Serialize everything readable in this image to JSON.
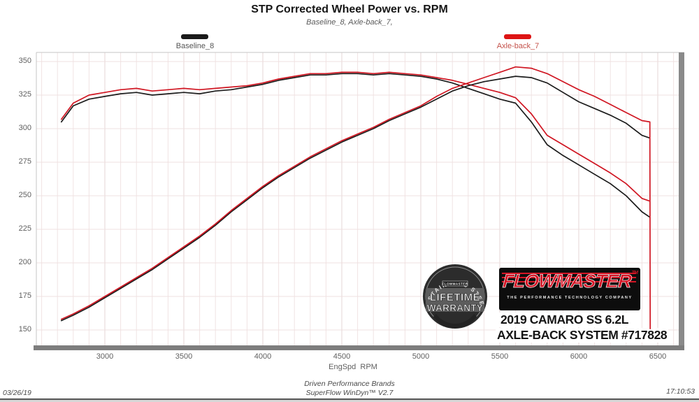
{
  "header": {
    "title": "STP Corrected Wheel Power vs. RPM",
    "subtitle": "Baseline_8, Axle-back_7,"
  },
  "legend": {
    "baseline": {
      "label": "Baseline_8",
      "color": "#1a1a1a"
    },
    "axleback": {
      "label": "Axle-back_7",
      "color": "#dd1414"
    }
  },
  "branding": {
    "badge": {
      "arc_text": "STAINLESS STEEL",
      "brand": "FLOWMASTER",
      "line1": "LIFETIME",
      "line2": "WARRANTY"
    },
    "logo": {
      "word": "FLOWMASTER",
      "tm": "TM",
      "tagline": "THE PERFORMANCE TECHNOLOGY COMPANY"
    },
    "vehicle_line1": "2019 CAMARO SS 6.2L",
    "vehicle_line2": "AXLE-BACK SYSTEM #717828"
  },
  "footer": {
    "date": "03/26/19",
    "center_line1": "Driven Performance Brands",
    "center_line2": "SuperFlow WinDyn™ V2.7",
    "time": "17:10:53"
  },
  "chart_data": {
    "type": "line",
    "title": "STP Corrected Wheel Power vs. RPM",
    "subtitle": "Baseline_8, Axle-back_7,",
    "xlabel": "EngSpd  RPM",
    "ylabel": "",
    "x_ticks": [
      3000,
      3500,
      4000,
      4500,
      5000,
      5500,
      6000,
      6500
    ],
    "y_ticks": [
      150,
      175,
      200,
      225,
      250,
      275,
      300,
      325,
      350
    ],
    "xlim": [
      2566,
      6660
    ],
    "ylim": [
      138,
      357
    ],
    "minor_x_step": 100,
    "grid": true,
    "legend_position": "top",
    "x": [
      2725,
      2800,
      2900,
      3000,
      3100,
      3200,
      3300,
      3400,
      3500,
      3600,
      3700,
      3800,
      3900,
      4000,
      4100,
      4200,
      4300,
      4400,
      4500,
      4600,
      4700,
      4800,
      4900,
      5000,
      5100,
      5200,
      5300,
      5400,
      5500,
      5600,
      5700,
      5800,
      5900,
      6000,
      6100,
      6200,
      6300,
      6400,
      6450
    ],
    "series": [
      {
        "name": "baseline-8-torque",
        "legend": "Baseline_8",
        "color": "#1c1c1c",
        "y": [
          305,
          317,
          322,
          324,
          326,
          327,
          325,
          326,
          327,
          326,
          328,
          329,
          331,
          333,
          336,
          338,
          340,
          340,
          341,
          341,
          340,
          341,
          340,
          339,
          337,
          334,
          330,
          326,
          322,
          319,
          305,
          288,
          280,
          273,
          266,
          259,
          250,
          238,
          234
        ]
      },
      {
        "name": "axle-back-7-torque",
        "legend": "Axle-back_7",
        "color": "#d01622",
        "y": [
          307,
          319,
          325,
          327,
          329,
          330,
          328,
          329,
          330,
          329,
          330,
          331,
          332,
          334,
          337,
          339,
          341,
          341,
          342,
          342,
          341,
          342,
          341,
          340,
          338,
          336,
          333,
          330,
          327,
          323,
          311,
          295,
          288,
          281,
          274,
          267,
          259,
          248,
          246
        ]
      },
      {
        "name": "baseline-8-power",
        "legend": "Baseline_8",
        "color": "#1c1c1c",
        "y": [
          157,
          161,
          167,
          174,
          181,
          188,
          195,
          203,
          211,
          219,
          228,
          238,
          247,
          256,
          264,
          271,
          278,
          284,
          290,
          295,
          300,
          306,
          311,
          316,
          322,
          328,
          332,
          335,
          337,
          339,
          338,
          334,
          327,
          320,
          315,
          310,
          304,
          295,
          293
        ]
      },
      {
        "name": "axle-back-7-power",
        "legend": "Axle-back_7",
        "color": "#d01622",
        "extra_x": [
          6452
        ],
        "extra_y": [
          151
        ],
        "y": [
          158,
          162,
          168,
          175,
          182,
          189,
          196,
          204,
          212,
          220,
          229,
          239,
          248,
          257,
          265,
          272,
          279,
          285,
          291,
          296,
          301,
          307,
          312,
          317,
          324,
          330,
          334,
          338,
          342,
          346,
          345,
          341,
          335,
          329,
          324,
          318,
          312,
          306,
          305
        ]
      }
    ]
  }
}
